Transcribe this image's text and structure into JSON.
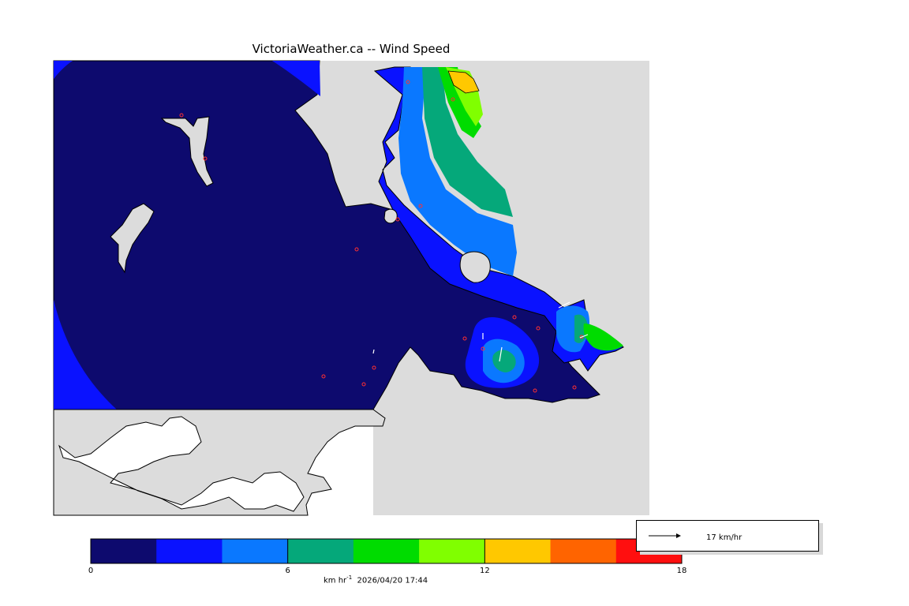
{
  "title": "VictoriaWeather.ca -- Wind Speed",
  "colorbar": {
    "colors": [
      "#0d0a6e",
      "#0a12ff",
      "#0a78ff",
      "#05a87a",
      "#00dc00",
      "#80ff00",
      "#ffc800",
      "#ff6400",
      "#ff0f0f"
    ],
    "ticks": [
      {
        "value": 0,
        "label": "0"
      },
      {
        "value": 6,
        "label": "6"
      },
      {
        "value": 12,
        "label": "12"
      },
      {
        "value": 18,
        "label": "18"
      }
    ],
    "range": [
      0,
      18
    ]
  },
  "units_text": "km hr",
  "units_exponent": "-1",
  "timestamp": "2026/04/20 17:44",
  "reference_vector": {
    "label": "17 km/hr",
    "value": 17
  },
  "map_colors": {
    "land": "#dcdcdc",
    "no_data": "#ffffff",
    "calm": "#0d0a6e"
  }
}
